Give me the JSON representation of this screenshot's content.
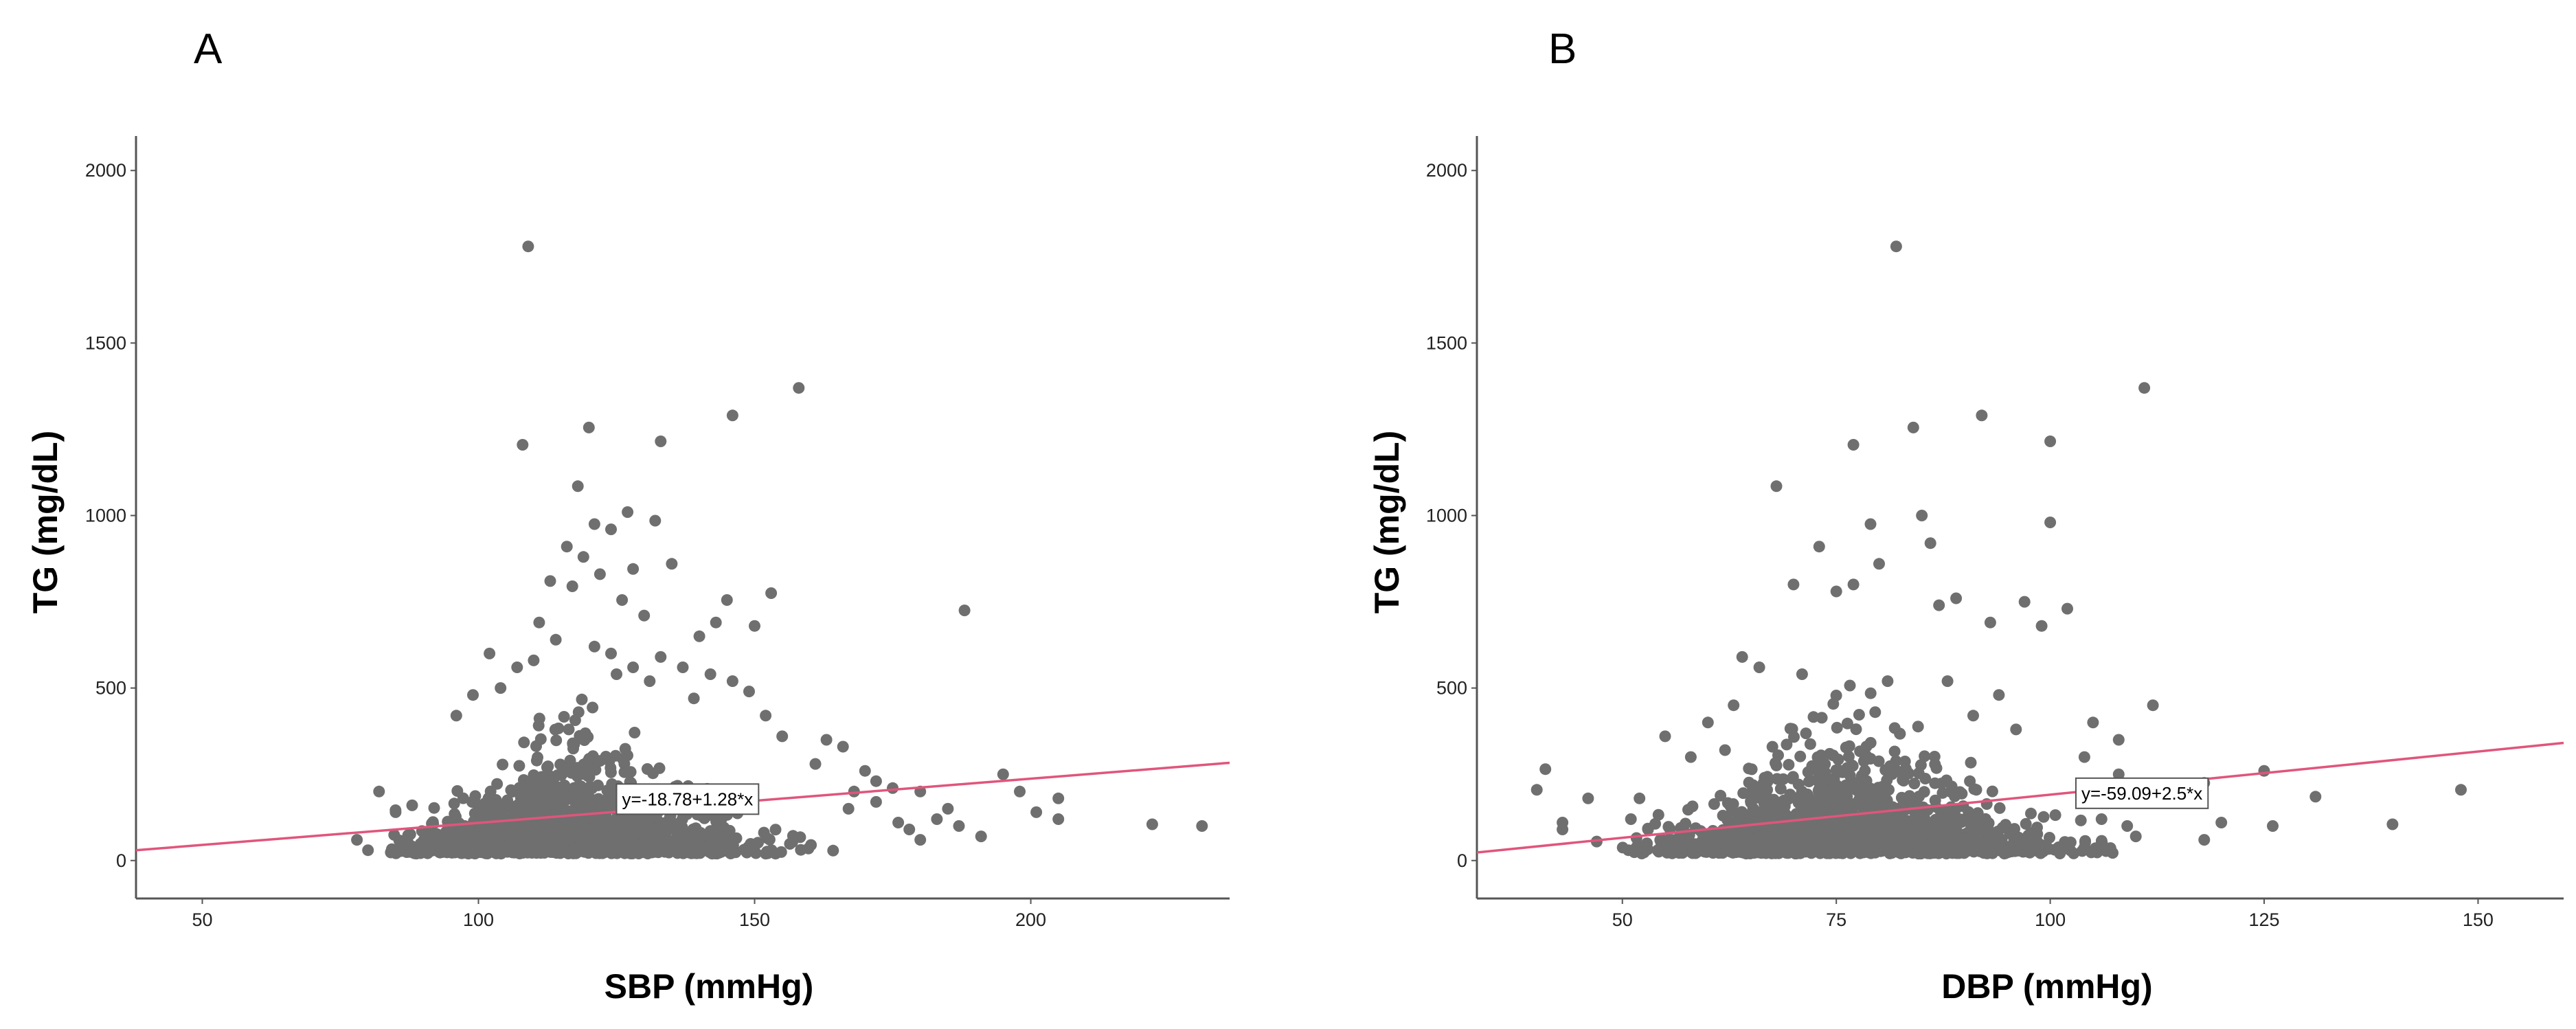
{
  "chart_data": [
    {
      "type": "scatter",
      "panel": "A",
      "xlabel": "SBP (mmHg)",
      "ylabel": "TG (mg/dL)",
      "xlim": [
        38,
        236
      ],
      "ylim": [
        -110,
        2100
      ],
      "xticks": [
        50,
        100,
        150,
        200
      ],
      "yticks": [
        0,
        500,
        1000,
        1500,
        2000
      ],
      "fit": {
        "intercept": -18.78,
        "slope": 1.28,
        "label": "y=-18.78+1.28*x",
        "label_at": [
          125,
          178
        ]
      },
      "outliers": [
        [
          109,
          1780
        ],
        [
          108,
          1205
        ],
        [
          120,
          1255
        ],
        [
          133,
          1215
        ],
        [
          146,
          1290
        ],
        [
          158,
          1370
        ],
        [
          118,
          1085
        ],
        [
          121,
          975
        ],
        [
          124,
          960
        ],
        [
          127,
          1010
        ],
        [
          132,
          985
        ],
        [
          116,
          910
        ],
        [
          119,
          880
        ],
        [
          122,
          830
        ],
        [
          113,
          810
        ],
        [
          135,
          860
        ],
        [
          128,
          845
        ],
        [
          117,
          795
        ],
        [
          126,
          755
        ],
        [
          153,
          775
        ],
        [
          145,
          755
        ],
        [
          150,
          680
        ],
        [
          143,
          690
        ],
        [
          130,
          710
        ],
        [
          140,
          650
        ],
        [
          188,
          725
        ],
        [
          111,
          690
        ],
        [
          114,
          640
        ],
        [
          121,
          620
        ],
        [
          124,
          600
        ],
        [
          128,
          560
        ],
        [
          133,
          590
        ],
        [
          137,
          560
        ],
        [
          142,
          540
        ],
        [
          146,
          520
        ],
        [
          149,
          490
        ],
        [
          110,
          580
        ],
        [
          107,
          560
        ],
        [
          104,
          500
        ],
        [
          99,
          480
        ],
        [
          102,
          600
        ],
        [
          96,
          420
        ],
        [
          163,
          350
        ],
        [
          166,
          330
        ],
        [
          170,
          260
        ],
        [
          172,
          230
        ],
        [
          175,
          210
        ],
        [
          180,
          200
        ],
        [
          183,
          120
        ],
        [
          187,
          100
        ],
        [
          191,
          70
        ],
        [
          195,
          250
        ],
        [
          198,
          200
        ],
        [
          201,
          140
        ],
        [
          205,
          180
        ],
        [
          205,
          120
        ],
        [
          222,
          105
        ],
        [
          231,
          100
        ],
        [
          82,
          200
        ],
        [
          78,
          60
        ],
        [
          80,
          30
        ],
        [
          88,
          160
        ],
        [
          85,
          140
        ],
        [
          178,
          90
        ],
        [
          167,
          150
        ],
        [
          161,
          280
        ],
        [
          155,
          360
        ],
        [
          152,
          420
        ],
        [
          139,
          470
        ],
        [
          131,
          520
        ],
        [
          125,
          540
        ],
        [
          180,
          60
        ],
        [
          176,
          110
        ],
        [
          185,
          150
        ],
        [
          172,
          170
        ],
        [
          168,
          200
        ]
      ],
      "cloud": {
        "x_center": 118,
        "x_sd": 15,
        "x_range": [
          84,
          166
        ],
        "y_floor": 20,
        "y_scale": 95,
        "y_cap": 480,
        "seed": 7,
        "count": 1600
      }
    },
    {
      "type": "scatter",
      "panel": "B",
      "xlabel": "DBP (mmHg)",
      "ylabel": "TG (mg/dL)",
      "xlim": [
        33,
        160
      ],
      "ylim": [
        -110,
        2100
      ],
      "xticks": [
        50,
        75,
        100,
        125,
        150
      ],
      "yticks": [
        0,
        500,
        1000,
        1500,
        2000
      ],
      "fit": {
        "intercept": -59.09,
        "slope": 2.5,
        "label": "y=-59.09+2.5*x",
        "label_at": [
          103,
          195
        ]
      },
      "outliers": [
        [
          82,
          1780
        ],
        [
          92,
          1290
        ],
        [
          111,
          1370
        ],
        [
          100,
          1215
        ],
        [
          84,
          1255
        ],
        [
          77,
          1205
        ],
        [
          68,
          1085
        ],
        [
          85,
          1000
        ],
        [
          100,
          980
        ],
        [
          79,
          975
        ],
        [
          73,
          910
        ],
        [
          86,
          920
        ],
        [
          80,
          860
        ],
        [
          77,
          800
        ],
        [
          89,
          760
        ],
        [
          87,
          740
        ],
        [
          97,
          750
        ],
        [
          99,
          680
        ],
        [
          102,
          730
        ],
        [
          93,
          690
        ],
        [
          70,
          800
        ],
        [
          75,
          780
        ],
        [
          64,
          590
        ],
        [
          66,
          560
        ],
        [
          71,
          540
        ],
        [
          81,
          520
        ],
        [
          88,
          520
        ],
        [
          94,
          480
        ],
        [
          105,
          400
        ],
        [
          108,
          350
        ],
        [
          112,
          450
        ],
        [
          118,
          225
        ],
        [
          118,
          60
        ],
        [
          120,
          110
        ],
        [
          125,
          260
        ],
        [
          126,
          100
        ],
        [
          131,
          185
        ],
        [
          140,
          105
        ],
        [
          148,
          205
        ],
        [
          40,
          205
        ],
        [
          41,
          265
        ],
        [
          43,
          110
        ],
        [
          43,
          90
        ],
        [
          46,
          180
        ],
        [
          47,
          55
        ],
        [
          52,
          180
        ],
        [
          51,
          120
        ],
        [
          53,
          90
        ],
        [
          55,
          360
        ],
        [
          58,
          300
        ],
        [
          62,
          320
        ],
        [
          106,
          120
        ],
        [
          109,
          100
        ],
        [
          104,
          300
        ],
        [
          110,
          70
        ],
        [
          96,
          380
        ],
        [
          91,
          420
        ],
        [
          63,
          450
        ],
        [
          60,
          400
        ],
        [
          108,
          250
        ]
      ],
      "cloud": {
        "x_center": 77,
        "x_sd": 11,
        "x_range": [
          50,
          108
        ],
        "y_floor": 20,
        "y_scale": 95,
        "y_cap": 480,
        "seed": 19,
        "count": 1600
      }
    }
  ],
  "panels": [
    {
      "letter": "A",
      "xlabel": "SBP (mmHg)",
      "ylabel": "TG (mg/dL)",
      "equation": "y=-18.78+1.28*x",
      "xtick_labels": [
        "50",
        "100",
        "150",
        "200"
      ],
      "ytick_labels": [
        "0",
        "500",
        "1000",
        "1500",
        "2000"
      ]
    },
    {
      "letter": "B",
      "xlabel": "DBP (mmHg)",
      "ylabel": "TG (mg/dL)",
      "equation": "y=-59.09+2.5*x",
      "xtick_labels": [
        "50",
        "75",
        "100",
        "125",
        "150"
      ],
      "ytick_labels": [
        "0",
        "500",
        "1000",
        "1500",
        "2000"
      ]
    }
  ],
  "colors": {
    "point": "#6f6f6f",
    "fit_line": "#e0557b",
    "axis": "#555555",
    "background": "#ffffff"
  }
}
